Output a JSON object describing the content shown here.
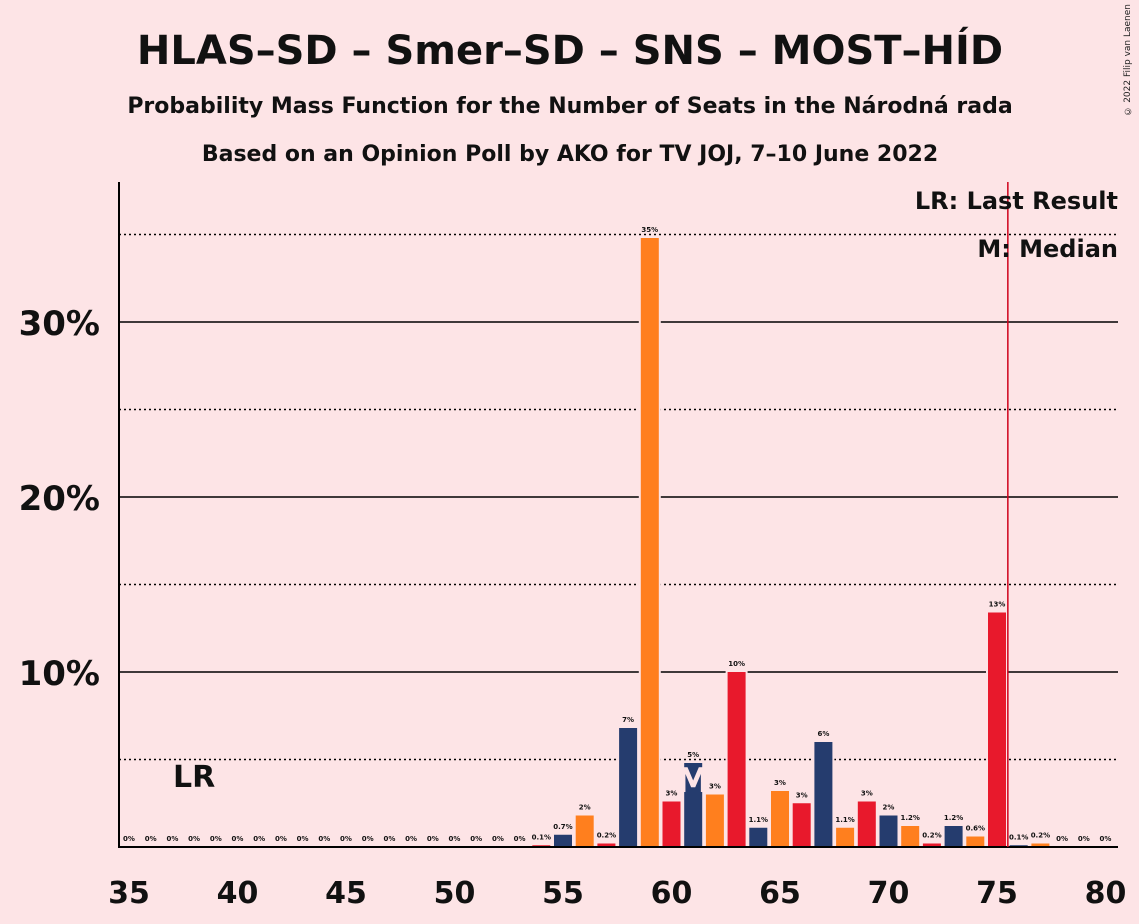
{
  "copyright": "© 2022 Filip van Laenen",
  "chart_data": {
    "type": "bar",
    "title": "HLAS–SD – Smer–SD – SNS – MOST–HÍD",
    "subtitle1": "Probability Mass Function for the Number of Seats in the Národná rada",
    "subtitle2": "Based on an Opinion Poll by AKO for TV JOJ, 7–10 June 2022",
    "legend": [
      "LR: Last Result",
      "M: Median"
    ],
    "last_result_marker": "LR",
    "median_marker": "M",
    "last_result_position": 38,
    "median_seat": 61,
    "majority_line": 75.5,
    "xlim": [
      35,
      80
    ],
    "ylim": [
      0,
      38
    ],
    "x_ticks": [
      "35",
      "40",
      "45",
      "50",
      "55",
      "60",
      "65",
      "70",
      "75",
      "80"
    ],
    "y_ticks": [
      {
        "value": 10,
        "label": "10%"
      },
      {
        "value": 20,
        "label": "20%"
      },
      {
        "value": 30,
        "label": "30%"
      }
    ],
    "y_minor_ticks": [
      5,
      15,
      25,
      35
    ],
    "colors": {
      "background": "#FDE4E6",
      "palette": [
        "#E8192C",
        "#253C6E",
        "#FF7F1E"
      ],
      "vline": "#D0021B"
    },
    "bars": [
      {
        "x": 35,
        "value": 0,
        "label": "0%"
      },
      {
        "x": 36,
        "value": 0,
        "label": "0%"
      },
      {
        "x": 37,
        "value": 0,
        "label": "0%"
      },
      {
        "x": 38,
        "value": 0,
        "label": "0%"
      },
      {
        "x": 39,
        "value": 0,
        "label": "0%"
      },
      {
        "x": 40,
        "value": 0,
        "label": "0%"
      },
      {
        "x": 41,
        "value": 0,
        "label": "0%"
      },
      {
        "x": 42,
        "value": 0,
        "label": "0%"
      },
      {
        "x": 43,
        "value": 0,
        "label": "0%"
      },
      {
        "x": 44,
        "value": 0,
        "label": "0%"
      },
      {
        "x": 45,
        "value": 0,
        "label": "0%"
      },
      {
        "x": 46,
        "value": 0,
        "label": "0%"
      },
      {
        "x": 47,
        "value": 0,
        "label": "0%"
      },
      {
        "x": 48,
        "value": 0,
        "label": "0%"
      },
      {
        "x": 49,
        "value": 0,
        "label": "0%"
      },
      {
        "x": 50,
        "value": 0,
        "label": "0%"
      },
      {
        "x": 51,
        "value": 0,
        "label": "0%"
      },
      {
        "x": 52,
        "value": 0,
        "label": "0%"
      },
      {
        "x": 53,
        "value": 0,
        "label": "0%"
      },
      {
        "x": 54,
        "value": 0.1,
        "label": "0.1%"
      },
      {
        "x": 55,
        "value": 0.7,
        "label": "0.7%"
      },
      {
        "x": 56,
        "value": 1.8,
        "label": "2%"
      },
      {
        "x": 57,
        "value": 0.2,
        "label": "0.2%"
      },
      {
        "x": 58,
        "value": 6.8,
        "label": "7%"
      },
      {
        "x": 59,
        "value": 34.8,
        "label": "35%"
      },
      {
        "x": 60,
        "value": 2.6,
        "label": "3%"
      },
      {
        "x": 61,
        "value": 4.8,
        "label": "5%"
      },
      {
        "x": 62,
        "value": 3.0,
        "label": "3%"
      },
      {
        "x": 63,
        "value": 10.0,
        "label": "10%"
      },
      {
        "x": 64,
        "value": 1.1,
        "label": "1.1%"
      },
      {
        "x": 65,
        "value": 3.2,
        "label": "3%"
      },
      {
        "x": 66,
        "value": 2.5,
        "label": "3%"
      },
      {
        "x": 67,
        "value": 6.0,
        "label": "6%"
      },
      {
        "x": 68,
        "value": 1.1,
        "label": "1.1%"
      },
      {
        "x": 69,
        "value": 2.6,
        "label": "3%"
      },
      {
        "x": 70,
        "value": 1.8,
        "label": "2%"
      },
      {
        "x": 71,
        "value": 1.2,
        "label": "1.2%"
      },
      {
        "x": 72,
        "value": 0.2,
        "label": "0.2%"
      },
      {
        "x": 73,
        "value": 1.2,
        "label": "1.2%"
      },
      {
        "x": 74,
        "value": 0.6,
        "label": "0.6%"
      },
      {
        "x": 75,
        "value": 13.4,
        "label": "13%"
      },
      {
        "x": 76,
        "value": 0.1,
        "label": "0.1%"
      },
      {
        "x": 77,
        "value": 0.2,
        "label": "0.2%"
      },
      {
        "x": 78,
        "value": 0,
        "label": "0%"
      },
      {
        "x": 79,
        "value": 0,
        "label": "0%"
      },
      {
        "x": 80,
        "value": 0,
        "label": "0%"
      }
    ]
  }
}
